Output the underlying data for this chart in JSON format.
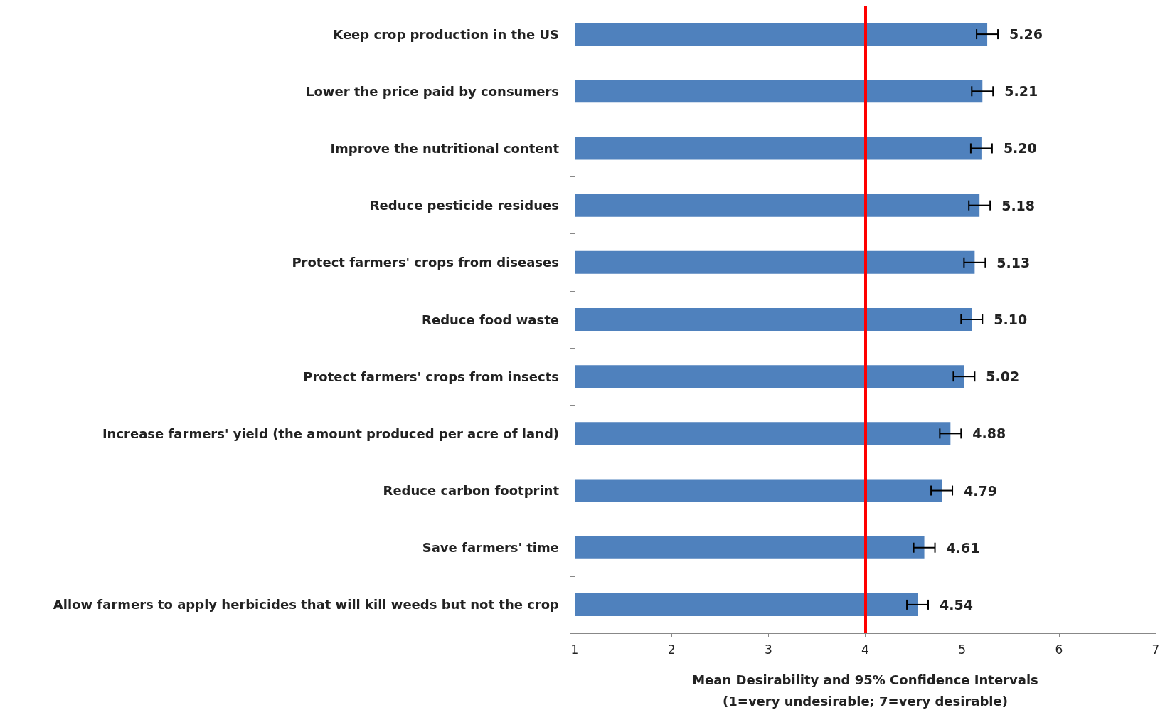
{
  "chart_data": {
    "type": "bar",
    "orientation": "horizontal",
    "xlabel": "Mean Desirability and 95% Confidence Intervals\n(1=very undesirable; 7=very desirable)",
    "categories": [
      "Keep crop production in the US",
      "Lower the price paid by consumers",
      "Improve the nutritional content",
      "Reduce pesticide residues",
      "Protect farmers' crops from diseases",
      "Reduce food waste",
      "Protect farmers' crops from insects",
      "Increase farmers' yield (the amount produced per acre of land)",
      "Reduce carbon footprint",
      "Save farmers' time",
      "Allow farmers to apply herbicides that will kill weeds but not the crop"
    ],
    "values": [
      5.26,
      5.21,
      5.2,
      5.18,
      5.13,
      5.1,
      5.02,
      4.88,
      4.79,
      4.61,
      4.54
    ],
    "value_labels": [
      "5.26",
      "5.21",
      "5.20",
      "5.18",
      "5.13",
      "5.10",
      "5.02",
      "4.88",
      "4.79",
      "4.61",
      "4.54"
    ],
    "errors": [
      0.11,
      0.11,
      0.11,
      0.11,
      0.11,
      0.11,
      0.11,
      0.11,
      0.11,
      0.11,
      0.11
    ],
    "color": "#4f81bd",
    "xlim": [
      1,
      7
    ],
    "xticks": [
      1,
      2,
      3,
      4,
      5,
      6,
      7
    ],
    "ref_lines": [
      {
        "axis": "x",
        "value": 4,
        "color": "#ff0000"
      }
    ]
  }
}
